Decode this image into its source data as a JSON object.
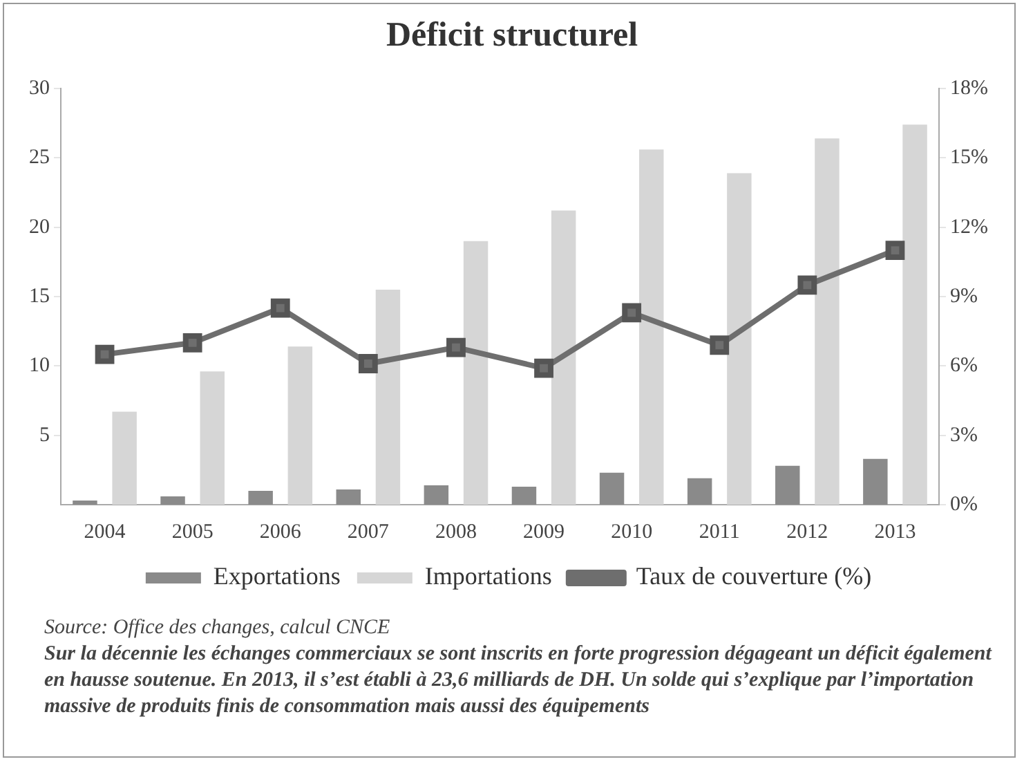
{
  "chart_data": {
    "type": "bar",
    "title": "Déficit structurel",
    "categories": [
      "2004",
      "2005",
      "2006",
      "2007",
      "2008",
      "2009",
      "2010",
      "2011",
      "2012",
      "2013"
    ],
    "series": [
      {
        "name": "Exportations",
        "color": "#8a8a8a",
        "values": [
          0.3,
          0.6,
          1.0,
          1.1,
          1.4,
          1.3,
          2.3,
          1.9,
          2.8,
          3.3
        ]
      },
      {
        "name": "Importations",
        "color": "#d6d6d6",
        "values": [
          6.7,
          9.6,
          11.4,
          15.5,
          19.0,
          21.2,
          25.6,
          23.9,
          26.4,
          27.4
        ]
      },
      {
        "name": "Taux de couverture (%)",
        "type": "line",
        "axis": "y2",
        "color": "#6e6e6e",
        "values": [
          6.5,
          7.0,
          8.5,
          6.1,
          6.8,
          5.9,
          8.3,
          6.9,
          9.5,
          11.0
        ]
      }
    ],
    "ylim": [
      0,
      30
    ],
    "yticks": [
      5,
      10,
      15,
      20,
      25,
      30
    ],
    "y2lim": [
      0,
      18
    ],
    "y2ticks": [
      {
        "value": 0,
        "label": "0%"
      },
      {
        "value": 3,
        "label": "3%"
      },
      {
        "value": 6,
        "label": "6%"
      },
      {
        "value": 9,
        "label": "9%"
      },
      {
        "value": 12,
        "label": "12%"
      },
      {
        "value": 15,
        "label": "15%"
      },
      {
        "value": 18,
        "label": "18%"
      }
    ],
    "grid": false,
    "legend": "bottom",
    "marker": "square",
    "line_style": "solid",
    "annotations": [
      "Source: Office des changes, calcul CNCE",
      "Sur la décennie les échanges commerciaux se sont inscrits en forte progression dégageant un déficit également en hausse soutenue. En 2013, il s’est établi à 23,6 milliards de DH. Un solde qui s’explique par l’importation massive de produits finis de consommation mais aussi des équipements"
    ]
  }
}
